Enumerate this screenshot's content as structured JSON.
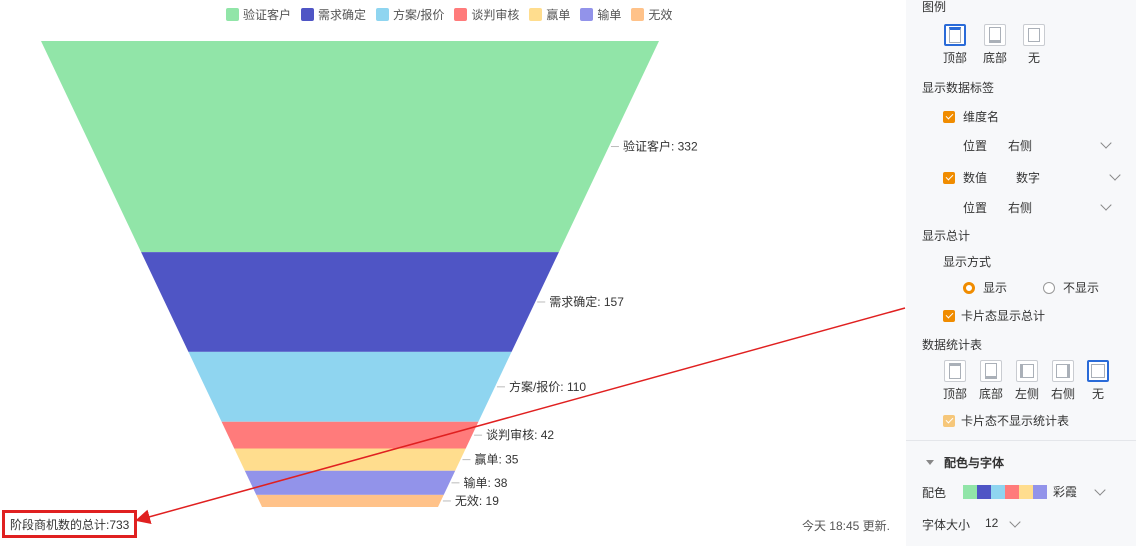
{
  "legend": [
    {
      "label": "验证客户",
      "color": "#91e5a8"
    },
    {
      "label": "需求确定",
      "color": "#4f55c5"
    },
    {
      "label": "方案/报价",
      "color": "#8fd5f0"
    },
    {
      "label": "谈判审核",
      "color": "#ff7b7b"
    },
    {
      "label": "赢单",
      "color": "#ffdd8e"
    },
    {
      "label": "输单",
      "color": "#9293ea"
    },
    {
      "label": "无效",
      "color": "#ffc289"
    }
  ],
  "chart_data": {
    "type": "funnel",
    "categories": [
      "验证客户",
      "需求确定",
      "方案/报价",
      "谈判审核",
      "赢单",
      "输单",
      "无效"
    ],
    "values": [
      332,
      157,
      110,
      42,
      35,
      38,
      19
    ],
    "labels": [
      "验证客户: 332",
      "需求确定: 157",
      "方案/报价: 110",
      "谈判审核: 42",
      "赢单: 35",
      "输单: 38",
      "无效: 19"
    ],
    "colors": [
      "#91e5a8",
      "#4f55c5",
      "#8fd5f0",
      "#ff7b7b",
      "#ffdd8e",
      "#9293ea",
      "#ffc289"
    ],
    "legend_position": "top"
  },
  "footer": {
    "total": "阶段商机数的总计:733",
    "updated": "今天 18:45 更新."
  },
  "panel": {
    "legend_title": "图例",
    "legend_options": [
      "顶部",
      "底部",
      "无"
    ],
    "data_label_title": "显示数据标签",
    "dim_name": "维度名",
    "position_label": "位置",
    "position_value": "右侧",
    "value_label": "数值",
    "value_type": "数字",
    "position_label2": "位置",
    "position_value2": "右侧",
    "total_title": "显示总计",
    "display_mode": "显示方式",
    "show": "显示",
    "hide": "不显示",
    "card_total": "卡片态显示总计",
    "stat_table_title": "数据统计表",
    "stat_options": [
      "顶部",
      "底部",
      "左侧",
      "右侧",
      "无"
    ],
    "card_no_table": "卡片态不显示统计表",
    "color_font_title": "配色与字体",
    "color_label": "配色",
    "color_scheme": "彩霞",
    "font_size_label": "字体大小",
    "font_size": "12"
  }
}
